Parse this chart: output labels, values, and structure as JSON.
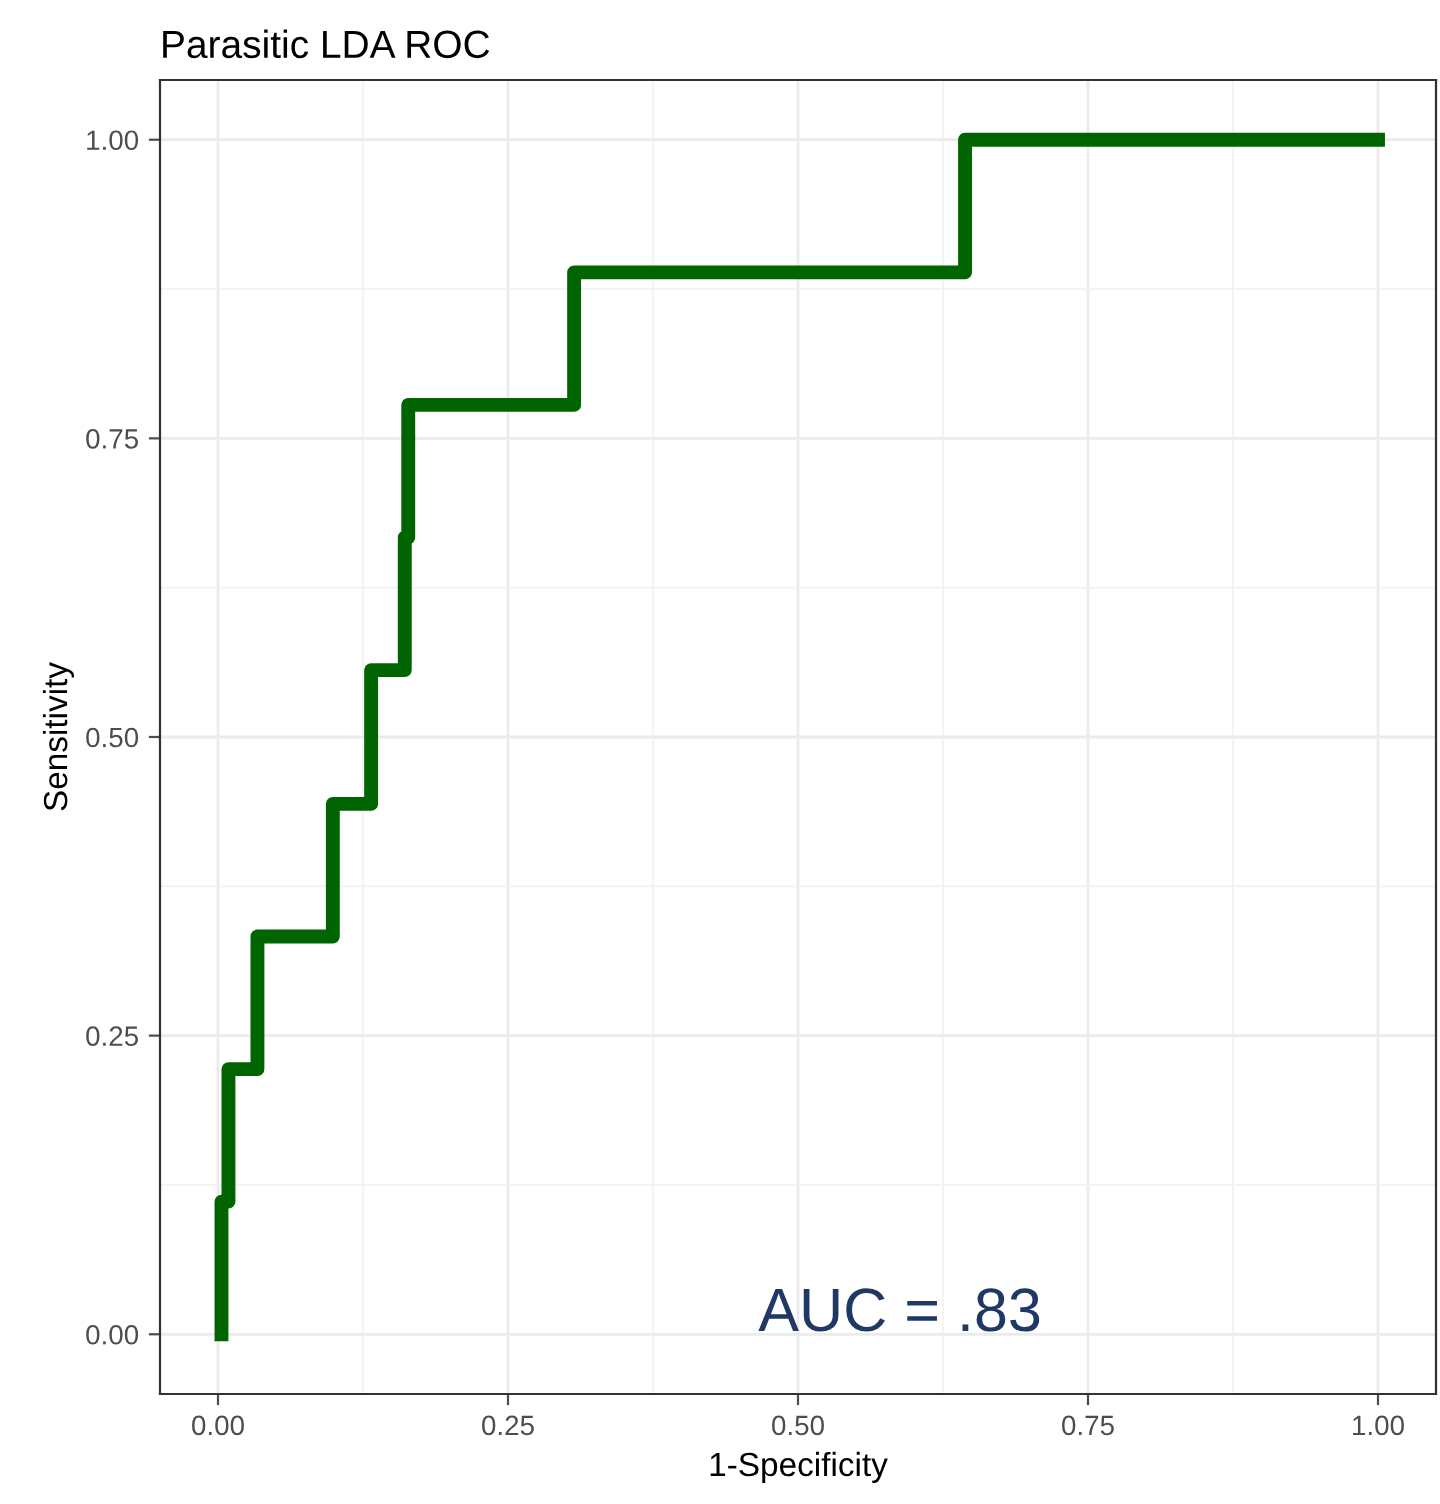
{
  "chart_data": {
    "type": "step",
    "title": "Parasitic LDA ROC",
    "xlabel": "1-Specificity",
    "ylabel": "Sensitivity",
    "x": [
      0.003,
      0.003,
      0.009,
      0.034,
      0.099,
      0.132,
      0.161,
      0.164,
      0.307,
      0.644,
      1.0
    ],
    "series": [
      {
        "color": "#006400",
        "values": [
          0,
          0.111,
          0.222,
          0.333,
          0.444,
          0.556,
          0.667,
          0.778,
          0.889,
          1.0,
          1.0
        ]
      }
    ],
    "xlim": [
      -0.05,
      1.05
    ],
    "ylim": [
      -0.05,
      1.05
    ],
    "xticks": [
      {
        "value": 0,
        "label": "0.00"
      },
      {
        "value": 0.125,
        "label": null
      },
      {
        "value": 0.25,
        "label": "0.25"
      },
      {
        "value": 0.375,
        "label": null
      },
      {
        "value": 0.5,
        "label": "0.50"
      },
      {
        "value": 0.625,
        "label": null
      },
      {
        "value": 0.75,
        "label": "0.75"
      },
      {
        "value": 0.875,
        "label": null
      },
      {
        "value": 1,
        "label": "1.00"
      }
    ],
    "yticks": [
      {
        "value": 0,
        "label": "0.00"
      },
      {
        "value": 0.125,
        "label": null
      },
      {
        "value": 0.25,
        "label": "0.25"
      },
      {
        "value": 0.375,
        "label": null
      },
      {
        "value": 0.5,
        "label": "0.50"
      },
      {
        "value": 0.625,
        "label": null
      },
      {
        "value": 0.75,
        "label": "0.75"
      },
      {
        "value": 0.875,
        "label": null
      },
      {
        "value": 1,
        "label": "1.00"
      }
    ],
    "grid": true,
    "marker": "none",
    "line_style": "solid",
    "annotations": [
      "AUC = .83"
    ]
  }
}
